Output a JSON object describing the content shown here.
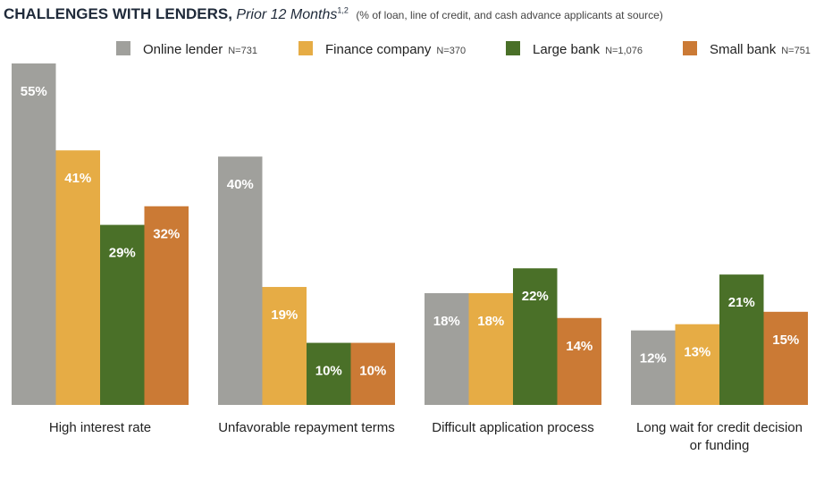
{
  "title": {
    "main": "CHALLENGES WITH LENDERS,",
    "italic": "Prior 12 Months",
    "superscript": "1,2",
    "note": "(% of loan, line of credit, and cash advance applicants at source)"
  },
  "colors": {
    "online_lender": "#a0a09c",
    "finance_company": "#e6ac45",
    "large_bank": "#4a7028",
    "small_bank": "#cb7a35"
  },
  "chart_data": {
    "type": "bar",
    "categories": [
      [
        "High interest rate"
      ],
      [
        "Unfavorable repayment terms"
      ],
      [
        "Difficult application process"
      ],
      [
        "Long wait for credit decision",
        "or funding"
      ]
    ],
    "series": [
      {
        "name": "Online lender",
        "n": "N=731",
        "color": "#a0a09c",
        "values": [
          55,
          40,
          18,
          12
        ],
        "labels": [
          "55%",
          "40%",
          "18%",
          "12%"
        ]
      },
      {
        "name": "Finance company",
        "n": "N=370",
        "color": "#e6ac45",
        "values": [
          41,
          19,
          18,
          13
        ],
        "labels": [
          "41%",
          "19%",
          "18%",
          "13%"
        ]
      },
      {
        "name": "Large bank",
        "n": "N=1,076",
        "color": "#4a7028",
        "values": [
          29,
          10,
          22,
          21
        ],
        "labels": [
          "29%",
          "10%",
          "22%",
          "21%"
        ]
      },
      {
        "name": "Small bank",
        "n": "N=751",
        "color": "#cb7a35",
        "values": [
          32,
          10,
          14,
          15
        ],
        "labels": [
          "32%",
          "10%",
          "14%",
          "15%"
        ]
      }
    ],
    "ylim": [
      0,
      55
    ],
    "legend": "top-right",
    "grid": false
  }
}
